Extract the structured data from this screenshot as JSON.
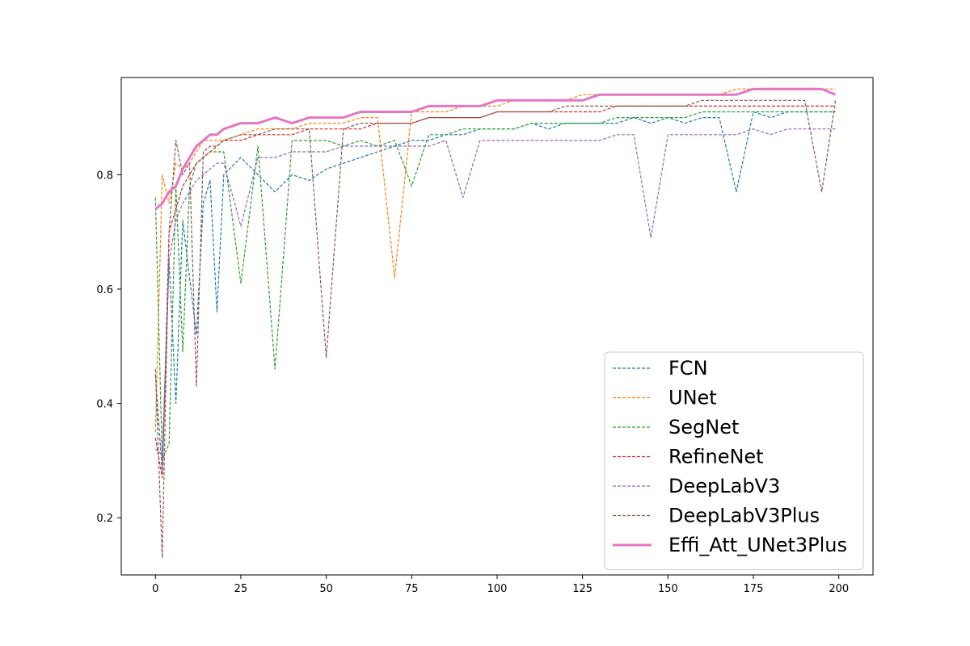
{
  "chart_data": {
    "type": "line",
    "title": "",
    "xlabel": "",
    "ylabel": "",
    "xlim": [
      -10,
      210
    ],
    "ylim": [
      0.1,
      0.97
    ],
    "xticks": [
      0,
      25,
      50,
      75,
      100,
      125,
      150,
      175,
      200
    ],
    "yticks": [
      0.2,
      0.4,
      0.6,
      0.8
    ],
    "xtick_labels": [
      "0",
      "25",
      "50",
      "75",
      "100",
      "125",
      "150",
      "175",
      "200"
    ],
    "ytick_labels": [
      "0.2",
      "0.4",
      "0.6",
      "0.8"
    ],
    "grid": false,
    "legend_position": "lower-right",
    "x": [
      0,
      2,
      4,
      6,
      8,
      10,
      12,
      14,
      16,
      18,
      20,
      25,
      30,
      35,
      40,
      45,
      50,
      55,
      60,
      65,
      70,
      75,
      80,
      85,
      90,
      95,
      100,
      105,
      110,
      115,
      120,
      125,
      130,
      135,
      140,
      145,
      150,
      155,
      160,
      165,
      170,
      175,
      180,
      185,
      190,
      195,
      199
    ],
    "series": [
      {
        "name": "FCN",
        "color": "#1f77b4",
        "style": "dashed",
        "width": 1.2,
        "values": [
          0.45,
          0.28,
          0.65,
          0.4,
          0.72,
          0.62,
          0.52,
          0.75,
          0.79,
          0.56,
          0.8,
          0.83,
          0.8,
          0.77,
          0.8,
          0.79,
          0.81,
          0.82,
          0.83,
          0.84,
          0.85,
          0.86,
          0.86,
          0.87,
          0.87,
          0.88,
          0.88,
          0.88,
          0.89,
          0.88,
          0.89,
          0.89,
          0.89,
          0.89,
          0.9,
          0.89,
          0.9,
          0.89,
          0.9,
          0.9,
          0.77,
          0.91,
          0.9,
          0.91,
          0.91,
          0.91,
          0.91
        ]
      },
      {
        "name": "UNet",
        "color": "#ff7f0e",
        "style": "dashed",
        "width": 1.2,
        "values": [
          0.35,
          0.8,
          0.75,
          0.82,
          0.81,
          0.82,
          0.84,
          0.86,
          0.86,
          0.86,
          0.86,
          0.87,
          0.88,
          0.88,
          0.88,
          0.89,
          0.89,
          0.89,
          0.9,
          0.9,
          0.62,
          0.91,
          0.91,
          0.91,
          0.92,
          0.92,
          0.92,
          0.93,
          0.93,
          0.93,
          0.93,
          0.94,
          0.94,
          0.94,
          0.94,
          0.94,
          0.94,
          0.94,
          0.94,
          0.94,
          0.95,
          0.95,
          0.95,
          0.95,
          0.95,
          0.95,
          0.95
        ]
      },
      {
        "name": "SegNet",
        "color": "#2ca02c",
        "style": "dashed",
        "width": 1.2,
        "values": [
          0.76,
          0.3,
          0.33,
          0.78,
          0.49,
          0.78,
          0.82,
          0.83,
          0.84,
          0.84,
          0.84,
          0.61,
          0.85,
          0.46,
          0.86,
          0.86,
          0.86,
          0.85,
          0.86,
          0.85,
          0.86,
          0.78,
          0.87,
          0.87,
          0.88,
          0.88,
          0.88,
          0.88,
          0.89,
          0.89,
          0.89,
          0.89,
          0.89,
          0.9,
          0.9,
          0.9,
          0.9,
          0.9,
          0.91,
          0.91,
          0.91,
          0.91,
          0.91,
          0.91,
          0.91,
          0.91,
          0.91
        ]
      },
      {
        "name": "RefineNet",
        "color": "#d62728",
        "style": "dashed",
        "width": 1.2,
        "values": [
          0.34,
          0.27,
          0.7,
          0.74,
          0.78,
          0.8,
          0.82,
          0.83,
          0.84,
          0.85,
          0.86,
          0.86,
          0.87,
          0.87,
          0.87,
          0.88,
          0.88,
          0.88,
          0.88,
          0.89,
          0.89,
          0.89,
          0.9,
          0.9,
          0.9,
          0.9,
          0.91,
          0.91,
          0.91,
          0.91,
          0.91,
          0.91,
          0.91,
          0.92,
          0.92,
          0.92,
          0.92,
          0.92,
          0.92,
          0.92,
          0.92,
          0.92,
          0.92,
          0.92,
          0.92,
          0.92,
          0.92
        ]
      },
      {
        "name": "DeepLabV3",
        "color": "#9467bd",
        "style": "dashed",
        "width": 1.2,
        "values": [
          0.32,
          0.31,
          0.65,
          0.72,
          0.75,
          0.77,
          0.79,
          0.8,
          0.81,
          0.82,
          0.82,
          0.71,
          0.83,
          0.83,
          0.84,
          0.84,
          0.84,
          0.85,
          0.85,
          0.85,
          0.85,
          0.85,
          0.85,
          0.86,
          0.76,
          0.86,
          0.86,
          0.86,
          0.86,
          0.86,
          0.86,
          0.86,
          0.86,
          0.87,
          0.87,
          0.69,
          0.87,
          0.87,
          0.87,
          0.87,
          0.87,
          0.88,
          0.87,
          0.88,
          0.88,
          0.88,
          0.88
        ]
      },
      {
        "name": "DeepLabV3Plus",
        "color": "#8c564b",
        "style": "dashed",
        "width": 1.2,
        "values": [
          0.46,
          0.13,
          0.7,
          0.86,
          0.8,
          0.82,
          0.43,
          0.84,
          0.85,
          0.85,
          0.86,
          0.87,
          0.87,
          0.88,
          0.88,
          0.88,
          0.48,
          0.88,
          0.89,
          0.89,
          0.89,
          0.89,
          0.9,
          0.9,
          0.9,
          0.9,
          0.91,
          0.91,
          0.91,
          0.91,
          0.92,
          0.92,
          0.92,
          0.92,
          0.92,
          0.92,
          0.92,
          0.92,
          0.93,
          0.93,
          0.93,
          0.93,
          0.93,
          0.93,
          0.93,
          0.77,
          0.93
        ]
      },
      {
        "name": "Effi_Att_UNet3Plus",
        "color": "#e377c2",
        "style": "solid",
        "width": 3.0,
        "values": [
          0.74,
          0.75,
          0.77,
          0.78,
          0.81,
          0.83,
          0.85,
          0.86,
          0.87,
          0.87,
          0.88,
          0.89,
          0.89,
          0.9,
          0.89,
          0.9,
          0.9,
          0.9,
          0.91,
          0.91,
          0.91,
          0.91,
          0.92,
          0.92,
          0.92,
          0.92,
          0.93,
          0.93,
          0.93,
          0.93,
          0.93,
          0.93,
          0.94,
          0.94,
          0.94,
          0.94,
          0.94,
          0.94,
          0.94,
          0.94,
          0.94,
          0.95,
          0.95,
          0.95,
          0.95,
          0.95,
          0.94
        ]
      }
    ]
  }
}
